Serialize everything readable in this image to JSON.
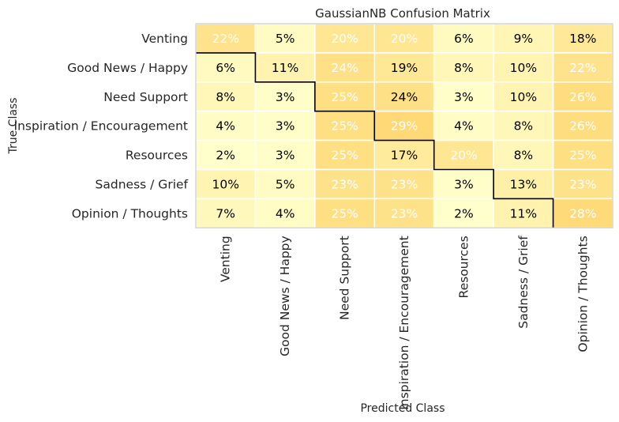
{
  "chart_data": {
    "type": "heatmap",
    "title": "GaussianNB Confusion Matrix",
    "xlabel": "Predicted Class",
    "ylabel": "True Class",
    "rows": [
      "Venting",
      "Good News / Happy",
      "Need Support",
      "Inspiration / Encouragement",
      "Resources",
      "Sadness / Grief",
      "Opinion / Thoughts"
    ],
    "columns": [
      "Venting",
      "Good News / Happy",
      "Need Support",
      "Inspiration / Encouragement",
      "Resources",
      "Sadness / Grief",
      "Opinion / Thoughts"
    ],
    "values": [
      [
        22,
        5,
        20,
        20,
        6,
        9,
        18
      ],
      [
        6,
        11,
        24,
        19,
        8,
        10,
        22
      ],
      [
        8,
        3,
        25,
        24,
        3,
        10,
        26
      ],
      [
        4,
        3,
        25,
        29,
        4,
        8,
        26
      ],
      [
        2,
        3,
        25,
        17,
        20,
        8,
        25
      ],
      [
        10,
        5,
        23,
        23,
        3,
        13,
        23
      ],
      [
        7,
        4,
        25,
        23,
        2,
        11,
        28
      ]
    ],
    "labels": [
      [
        "22%",
        "5%",
        "20%",
        "20%",
        "6%",
        "9%",
        "18%"
      ],
      [
        "6%",
        "11%",
        "24%",
        "19%",
        "8%",
        "10%",
        "22%"
      ],
      [
        "8%",
        "3%",
        "25%",
        "24%",
        "3%",
        "10%",
        "26%"
      ],
      [
        "4%",
        "3%",
        "25%",
        "29%",
        "4%",
        "8%",
        "26%"
      ],
      [
        "2%",
        "3%",
        "25%",
        "17%",
        "20%",
        "8%",
        "25%"
      ],
      [
        "10%",
        "5%",
        "23%",
        "23%",
        "3%",
        "13%",
        "23%"
      ],
      [
        "7%",
        "4%",
        "25%",
        "23%",
        "2%",
        "11%",
        "28%"
      ]
    ],
    "label_colors": [
      [
        "#ffffff",
        "#000000",
        "#ffffff",
        "#ffffff",
        "#000000",
        "#000000",
        "#000000"
      ],
      [
        "#000000",
        "#000000",
        "#ffffff",
        "#000000",
        "#000000",
        "#000000",
        "#ffffff"
      ],
      [
        "#000000",
        "#000000",
        "#ffffff",
        "#000000",
        "#000000",
        "#000000",
        "#ffffff"
      ],
      [
        "#000000",
        "#000000",
        "#ffffff",
        "#ffffff",
        "#000000",
        "#000000",
        "#ffffff"
      ],
      [
        "#000000",
        "#000000",
        "#ffffff",
        "#000000",
        "#ffffff",
        "#000000",
        "#ffffff"
      ],
      [
        "#000000",
        "#000000",
        "#ffffff",
        "#ffffff",
        "#000000",
        "#000000",
        "#ffffff"
      ],
      [
        "#000000",
        "#000000",
        "#ffffff",
        "#ffffff",
        "#000000",
        "#000000",
        "#ffffff"
      ]
    ],
    "colormap": {
      "low": "#ffffcc",
      "mid": "#ffeda0",
      "high": "#fed976"
    },
    "diagonal_outline": true,
    "grid": true
  }
}
